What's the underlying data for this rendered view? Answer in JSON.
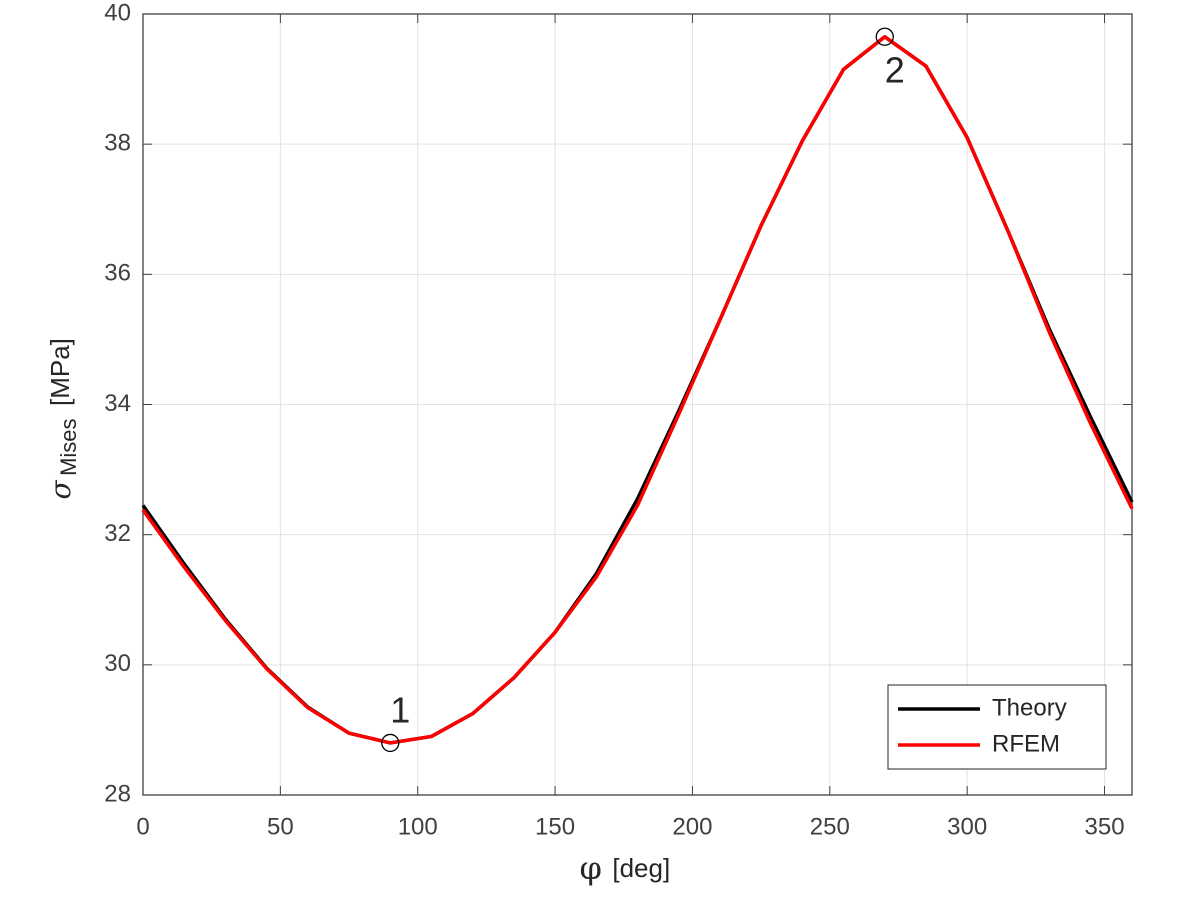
{
  "chart_data": {
    "type": "line",
    "xlabel": {
      "symbol": "φ",
      "unit": "[deg]"
    },
    "ylabel": {
      "symbol": "σ",
      "subscript": "Mises",
      "unit": "[MPa]"
    },
    "x": [
      0,
      15,
      30,
      45,
      60,
      75,
      90,
      105,
      120,
      135,
      150,
      165,
      180,
      195,
      210,
      225,
      240,
      255,
      270,
      285,
      300,
      315,
      330,
      345,
      360
    ],
    "series": [
      {
        "name": "Theory",
        "color": "#000000",
        "values": [
          32.45,
          31.55,
          30.7,
          29.95,
          29.35,
          28.95,
          28.8,
          28.9,
          29.25,
          29.8,
          30.5,
          31.4,
          32.55,
          33.9,
          35.3,
          36.75,
          38.05,
          39.15,
          39.65,
          39.2,
          38.1,
          36.65,
          35.15,
          33.8,
          32.5
        ]
      },
      {
        "name": "RFEM",
        "color": "#ff0000",
        "values": [
          32.38,
          31.5,
          30.68,
          29.94,
          29.34,
          28.95,
          28.8,
          28.9,
          29.25,
          29.8,
          30.5,
          31.35,
          32.45,
          33.85,
          35.3,
          36.75,
          38.05,
          39.15,
          39.65,
          39.2,
          38.1,
          36.65,
          35.1,
          33.7,
          32.4
        ]
      }
    ],
    "annotations": [
      {
        "text": "1",
        "x": 90,
        "y": 28.8
      },
      {
        "text": "2",
        "x": 270,
        "y": 39.65
      }
    ],
    "xlim": [
      0,
      360
    ],
    "xticks": [
      0,
      50,
      100,
      150,
      200,
      250,
      300,
      350
    ],
    "ylim": [
      28,
      40
    ],
    "yticks": [
      28,
      30,
      32,
      34,
      36,
      38,
      40
    ],
    "grid": true,
    "legend": "lower right"
  }
}
